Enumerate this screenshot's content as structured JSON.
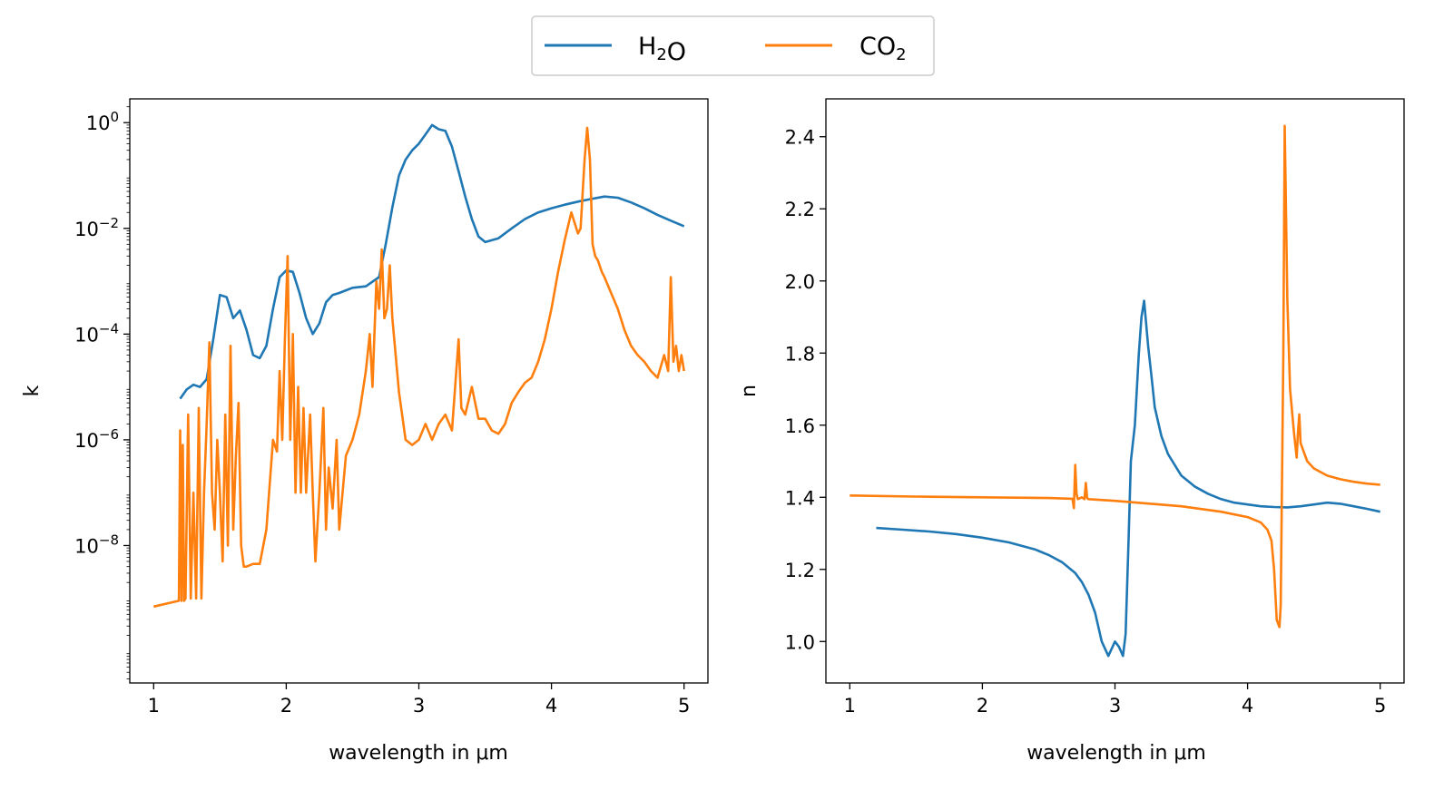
{
  "legend": {
    "placement": "top-center",
    "entries": [
      {
        "name": "H₂O",
        "color": "#1f77b4"
      },
      {
        "name": "CO₂",
        "color": "#ff7f0e"
      }
    ]
  },
  "chart_data": [
    {
      "type": "line",
      "xlabel": "wavelength in μm",
      "ylabel": "k",
      "yscale": "log",
      "xlim": [
        0.82,
        5.18
      ],
      "ylim_log10": [
        -10.6,
        0.45
      ],
      "xticks": [
        1,
        2,
        3,
        4,
        5
      ],
      "xtick_labels": [
        "1",
        "2",
        "3",
        "4",
        "5"
      ],
      "yticks_log10": [
        0,
        -2,
        -4,
        -6,
        -8
      ],
      "ytick_labels": [
        "10",
        "10",
        "10",
        "10",
        "10"
      ],
      "ytick_exponents": [
        "0",
        "−2",
        "−4",
        "−6",
        "−8"
      ],
      "grid": false,
      "series": [
        {
          "name": "H₂O",
          "color": "#1f77b4",
          "x": [
            1.2,
            1.25,
            1.3,
            1.35,
            1.4,
            1.45,
            1.5,
            1.55,
            1.6,
            1.65,
            1.7,
            1.75,
            1.8,
            1.85,
            1.9,
            1.95,
            2.0,
            2.05,
            2.1,
            2.15,
            2.2,
            2.25,
            2.3,
            2.35,
            2.4,
            2.5,
            2.6,
            2.7,
            2.75,
            2.8,
            2.85,
            2.9,
            2.95,
            3.0,
            3.05,
            3.1,
            3.15,
            3.2,
            3.25,
            3.3,
            3.35,
            3.4,
            3.45,
            3.5,
            3.6,
            3.7,
            3.8,
            3.9,
            4.0,
            4.1,
            4.2,
            4.3,
            4.4,
            4.5,
            4.6,
            4.7,
            4.8,
            4.9,
            5.0
          ],
          "y": [
            6e-06,
            9e-06,
            1.1e-05,
            1e-05,
            1.4e-05,
            8e-05,
            0.00055,
            0.0005,
            0.0002,
            0.00028,
            0.00012,
            4e-05,
            3.5e-05,
            6e-05,
            0.0003,
            0.0012,
            0.0016,
            0.0015,
            0.0006,
            0.0002,
            0.0001,
            0.00016,
            0.0004,
            0.00055,
            0.0006,
            0.00075,
            0.0008,
            0.0012,
            0.005,
            0.025,
            0.1,
            0.2,
            0.3,
            0.4,
            0.6,
            0.9,
            0.75,
            0.7,
            0.35,
            0.12,
            0.04,
            0.015,
            0.007,
            0.0055,
            0.0065,
            0.01,
            0.015,
            0.02,
            0.024,
            0.028,
            0.032,
            0.036,
            0.04,
            0.038,
            0.031,
            0.024,
            0.018,
            0.014,
            0.011
          ]
        },
        {
          "name": "CO₂",
          "color": "#ff7f0e",
          "x": [
            1.0,
            1.1,
            1.19,
            1.2,
            1.21,
            1.22,
            1.23,
            1.24,
            1.26,
            1.28,
            1.3,
            1.32,
            1.34,
            1.36,
            1.38,
            1.4,
            1.42,
            1.44,
            1.46,
            1.48,
            1.5,
            1.52,
            1.54,
            1.56,
            1.58,
            1.6,
            1.62,
            1.64,
            1.66,
            1.68,
            1.7,
            1.75,
            1.8,
            1.85,
            1.9,
            1.93,
            1.95,
            1.97,
            1.99,
            2.01,
            2.03,
            2.05,
            2.07,
            2.09,
            2.11,
            2.13,
            2.15,
            2.18,
            2.2,
            2.22,
            2.25,
            2.28,
            2.3,
            2.32,
            2.35,
            2.38,
            2.4,
            2.45,
            2.5,
            2.55,
            2.6,
            2.63,
            2.65,
            2.68,
            2.7,
            2.72,
            2.74,
            2.76,
            2.78,
            2.8,
            2.85,
            2.9,
            2.95,
            3.0,
            3.05,
            3.1,
            3.15,
            3.2,
            3.25,
            3.3,
            3.32,
            3.35,
            3.4,
            3.45,
            3.5,
            3.55,
            3.6,
            3.65,
            3.7,
            3.75,
            3.8,
            3.85,
            3.9,
            3.95,
            4.0,
            4.05,
            4.1,
            4.15,
            4.2,
            4.22,
            4.25,
            4.27,
            4.29,
            4.31,
            4.33,
            4.35,
            4.38,
            4.4,
            4.45,
            4.5,
            4.55,
            4.6,
            4.65,
            4.7,
            4.75,
            4.8,
            4.85,
            4.88,
            4.9,
            4.92,
            4.94,
            4.96,
            4.98,
            5.0
          ],
          "y": [
            7e-10,
            8e-10,
            9e-10,
            1.5e-06,
            9e-10,
            8e-07,
            9e-10,
            1e-09,
            3e-06,
            1e-09,
            1e-07,
            1e-09,
            4e-06,
            1e-09,
            1e-07,
            2e-06,
            7e-05,
            1e-07,
            2e-08,
            1e-06,
            1e-07,
            5e-09,
            3e-06,
            1e-08,
            6e-05,
            2e-08,
            5e-07,
            5e-06,
            1e-08,
            4e-09,
            4e-09,
            4.5e-09,
            4.5e-09,
            2e-08,
            1e-06,
            6e-07,
            2e-05,
            1e-06,
            8e-05,
            0.003,
            1e-06,
            0.0001,
            1e-07,
            1e-05,
            1e-07,
            4e-06,
            1e-07,
            3e-06,
            1e-07,
            5e-09,
            1e-07,
            4e-06,
            2e-08,
            3e-07,
            5e-08,
            1e-06,
            2e-08,
            5e-07,
            1e-06,
            3e-06,
            2e-05,
            0.0001,
            1e-05,
            0.001,
            0.0003,
            0.004,
            0.0002,
            0.0003,
            0.002,
            0.0002,
            8e-06,
            1e-06,
            8e-07,
            1e-06,
            2e-06,
            1e-06,
            2e-06,
            3e-06,
            1.5e-06,
            8e-05,
            4e-06,
            3e-06,
            1e-05,
            2.5e-06,
            2.5e-06,
            1.5e-06,
            1.3e-06,
            2e-06,
            5e-06,
            8e-06,
            1.2e-05,
            1.5e-05,
            3e-05,
            8e-05,
            0.0003,
            0.0015,
            0.006,
            0.02,
            0.008,
            0.01,
            0.2,
            0.8,
            0.2,
            0.005,
            0.003,
            0.0025,
            0.0015,
            0.0012,
            0.0006,
            0.0003,
            0.00012,
            6e-05,
            4e-05,
            3e-05,
            2e-05,
            1.5e-05,
            4e-05,
            2e-05,
            0.0012,
            3e-05,
            6e-05,
            2e-05,
            4e-05,
            2e-05
          ]
        }
      ]
    },
    {
      "type": "line",
      "xlabel": "wavelength in μm",
      "ylabel": "n",
      "yscale": "linear",
      "xlim": [
        0.82,
        5.18
      ],
      "ylim": [
        0.885,
        2.505
      ],
      "xticks": [
        1,
        2,
        3,
        4,
        5
      ],
      "xtick_labels": [
        "1",
        "2",
        "3",
        "4",
        "5"
      ],
      "yticks": [
        1.0,
        1.2,
        1.4,
        1.6,
        1.8,
        2.0,
        2.2,
        2.4
      ],
      "ytick_labels": [
        "1.0",
        "1.2",
        "1.4",
        "1.6",
        "1.8",
        "2.0",
        "2.2",
        "2.4"
      ],
      "grid": false,
      "series": [
        {
          "name": "H₂O",
          "color": "#1f77b4",
          "x": [
            1.2,
            1.4,
            1.6,
            1.8,
            2.0,
            2.2,
            2.4,
            2.5,
            2.6,
            2.7,
            2.75,
            2.8,
            2.85,
            2.9,
            2.95,
            3.0,
            3.03,
            3.06,
            3.08,
            3.1,
            3.12,
            3.15,
            3.18,
            3.2,
            3.22,
            3.25,
            3.28,
            3.3,
            3.35,
            3.4,
            3.5,
            3.6,
            3.7,
            3.8,
            3.9,
            4.0,
            4.1,
            4.2,
            4.3,
            4.4,
            4.5,
            4.6,
            4.7,
            4.8,
            4.9,
            5.0
          ],
          "y": [
            1.315,
            1.31,
            1.305,
            1.298,
            1.288,
            1.275,
            1.255,
            1.24,
            1.22,
            1.19,
            1.165,
            1.13,
            1.08,
            1.0,
            0.96,
            1.0,
            0.985,
            0.96,
            1.02,
            1.25,
            1.5,
            1.6,
            1.8,
            1.9,
            1.945,
            1.82,
            1.72,
            1.65,
            1.57,
            1.52,
            1.46,
            1.43,
            1.41,
            1.395,
            1.385,
            1.38,
            1.375,
            1.373,
            1.372,
            1.375,
            1.38,
            1.385,
            1.382,
            1.375,
            1.368,
            1.36
          ]
        },
        {
          "name": "CO₂",
          "color": "#ff7f0e",
          "x": [
            1.0,
            1.5,
            2.0,
            2.5,
            2.68,
            2.69,
            2.7,
            2.71,
            2.72,
            2.75,
            2.77,
            2.78,
            2.79,
            2.8,
            3.0,
            3.5,
            3.8,
            4.0,
            4.1,
            4.15,
            4.18,
            4.2,
            4.22,
            4.24,
            4.25,
            4.27,
            4.28,
            4.3,
            4.32,
            4.35,
            4.37,
            4.38,
            4.39,
            4.4,
            4.45,
            4.5,
            4.6,
            4.7,
            4.8,
            4.9,
            5.0
          ],
          "y": [
            1.405,
            1.402,
            1.4,
            1.398,
            1.396,
            1.37,
            1.49,
            1.41,
            1.395,
            1.4,
            1.395,
            1.44,
            1.398,
            1.395,
            1.39,
            1.375,
            1.36,
            1.345,
            1.33,
            1.31,
            1.28,
            1.2,
            1.06,
            1.04,
            1.1,
            1.8,
            2.43,
            1.95,
            1.7,
            1.58,
            1.51,
            1.58,
            1.63,
            1.55,
            1.5,
            1.48,
            1.46,
            1.45,
            1.443,
            1.438,
            1.435
          ]
        }
      ]
    }
  ]
}
